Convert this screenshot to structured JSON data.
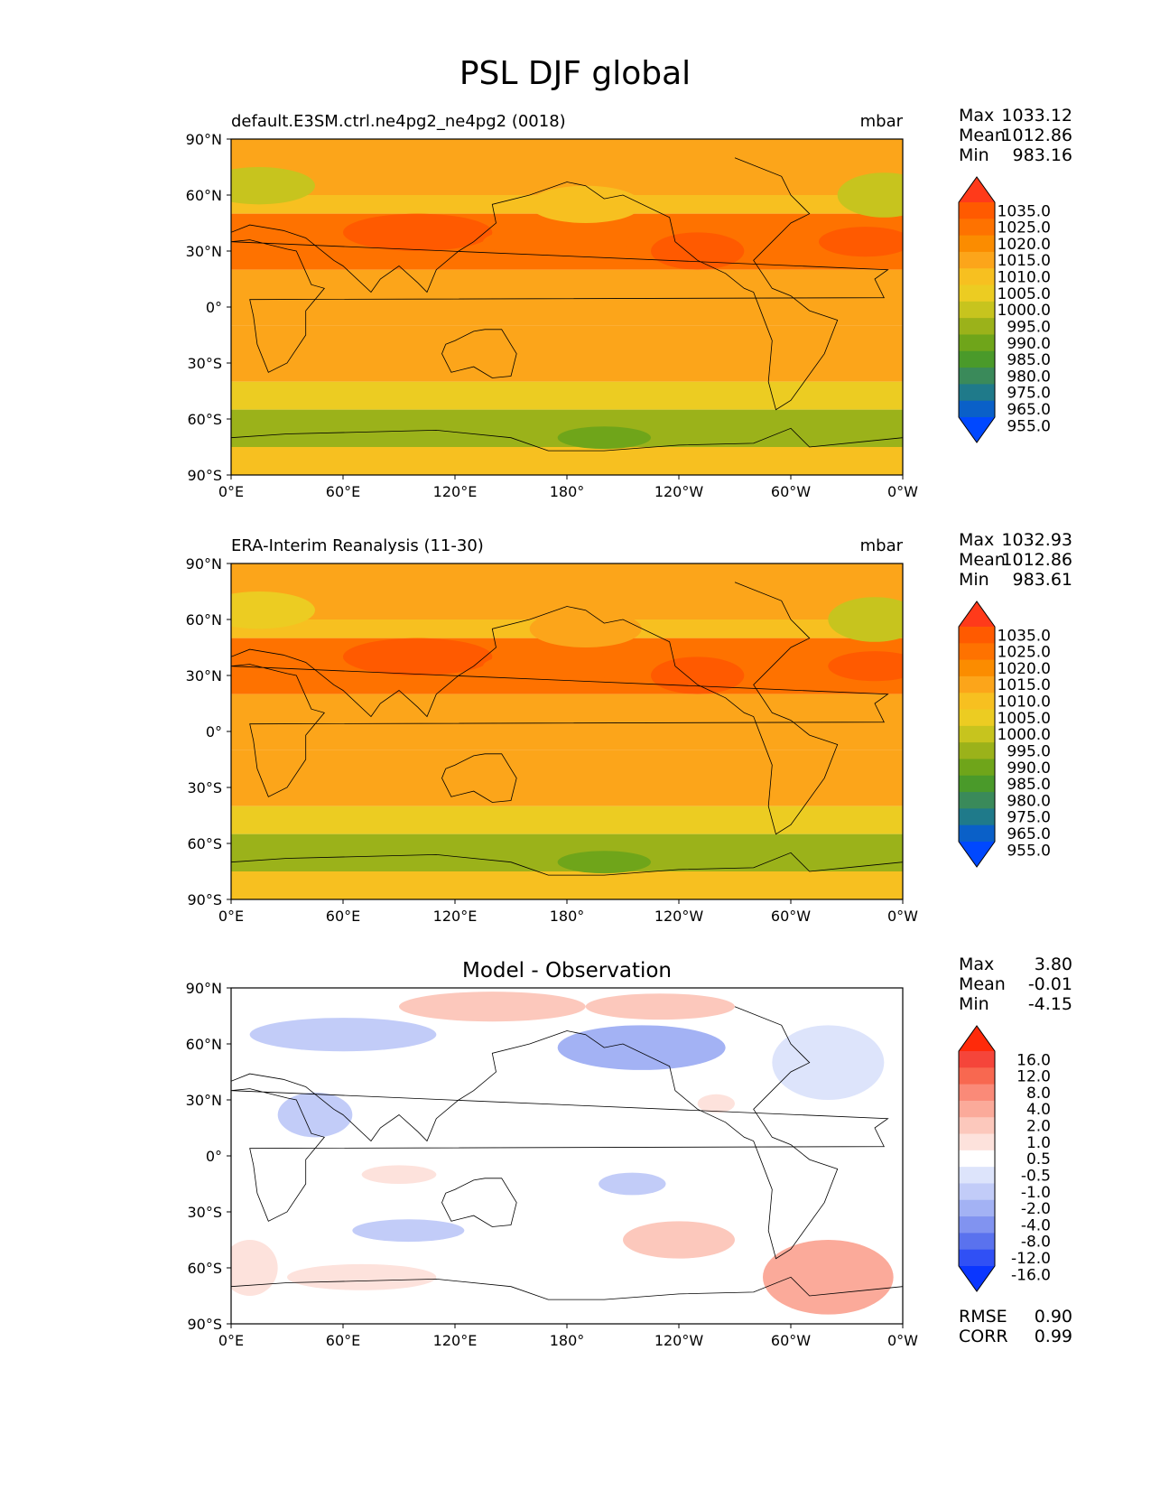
{
  "figure_title": "PSL DJF global",
  "chart_data": [
    {
      "type": "heatmap",
      "title": "default.E3SM.ctrl.ne4pg2_ne4pg2 (0018)",
      "units": "mbar",
      "stats": [
        {
          "label": "Max",
          "value": "1033.12"
        },
        {
          "label": "Mean",
          "value": "1012.86"
        },
        {
          "label": "Min",
          "value": "983.16"
        }
      ],
      "colorbar": {
        "extend": "both",
        "ticks": [
          "1035.0",
          "1025.0",
          "1020.0",
          "1015.0",
          "1010.0",
          "1005.0",
          "1000.0",
          "995.0",
          "990.0",
          "985.0",
          "980.0",
          "975.0",
          "965.0",
          "955.0"
        ],
        "colors": [
          "#ff3a1a",
          "#ff5a00",
          "#fe7200",
          "#fb8c00",
          "#fca51a",
          "#f7c020",
          "#eccc22",
          "#c7c41e",
          "#9bb21a",
          "#6fa51a",
          "#4a9a2a",
          "#3a8a5a",
          "#1f7a8a",
          "#0a60c8",
          "#0048ff"
        ]
      },
      "zones": [
        {
          "lat": [
            60,
            90
          ],
          "value": 1012
        },
        {
          "lat": [
            50,
            60
          ],
          "value": 1008
        },
        {
          "lat": [
            20,
            50
          ],
          "value": 1022
        },
        {
          "lat": [
            -10,
            20
          ],
          "value": 1011
        },
        {
          "lat": [
            -40,
            -10
          ],
          "value": 1014
        },
        {
          "lat": [
            -55,
            -40
          ],
          "value": 1003
        },
        {
          "lat": [
            -75,
            -55
          ],
          "value": 990
        },
        {
          "lat": [
            -90,
            -75
          ],
          "value": 1008
        }
      ],
      "blobs": [
        {
          "lon": 15,
          "lat": 65,
          "rx": 30,
          "ry": 10,
          "value": 997
        },
        {
          "lon": 350,
          "lat": 60,
          "rx": 25,
          "ry": 12,
          "value": 997
        },
        {
          "lon": 190,
          "lat": 55,
          "rx": 30,
          "ry": 10,
          "value": 1007
        },
        {
          "lon": 100,
          "lat": 40,
          "rx": 40,
          "ry": 10,
          "value": 1027
        },
        {
          "lon": 175,
          "lat": 35,
          "rx": 40,
          "ry": 8,
          "value": 1023
        },
        {
          "lon": 340,
          "lat": 35,
          "rx": 25,
          "ry": 8,
          "value": 1025
        },
        {
          "lon": 250,
          "lat": 30,
          "rx": 25,
          "ry": 10,
          "value": 1025
        },
        {
          "lon": 200,
          "lat": -70,
          "rx": 25,
          "ry": 6,
          "value": 985
        }
      ],
      "xticks": [
        "0°E",
        "60°E",
        "120°E",
        "180°",
        "120°W",
        "60°W",
        "0°W"
      ],
      "yticks": [
        "90°N",
        "60°N",
        "30°N",
        "0°",
        "30°S",
        "60°S",
        "90°S"
      ]
    },
    {
      "type": "heatmap",
      "title": "ERA-Interim Reanalysis (11-30)",
      "units": "mbar",
      "stats": [
        {
          "label": "Max",
          "value": "1032.93"
        },
        {
          "label": "Mean",
          "value": "1012.86"
        },
        {
          "label": "Min",
          "value": "983.61"
        }
      ],
      "colorbar": {
        "extend": "both",
        "ticks": [
          "1035.0",
          "1025.0",
          "1020.0",
          "1015.0",
          "1010.0",
          "1005.0",
          "1000.0",
          "995.0",
          "990.0",
          "985.0",
          "980.0",
          "975.0",
          "965.0",
          "955.0"
        ],
        "colors": [
          "#ff3a1a",
          "#ff5a00",
          "#fe7200",
          "#fb8c00",
          "#fca51a",
          "#f7c020",
          "#eccc22",
          "#c7c41e",
          "#9bb21a",
          "#6fa51a",
          "#4a9a2a",
          "#3a8a5a",
          "#1f7a8a",
          "#0a60c8",
          "#0048ff"
        ]
      },
      "zones": [
        {
          "lat": [
            60,
            90
          ],
          "value": 1013
        },
        {
          "lat": [
            50,
            60
          ],
          "value": 1009
        },
        {
          "lat": [
            20,
            50
          ],
          "value": 1022
        },
        {
          "lat": [
            -10,
            20
          ],
          "value": 1011
        },
        {
          "lat": [
            -40,
            -10
          ],
          "value": 1014
        },
        {
          "lat": [
            -55,
            -40
          ],
          "value": 1003
        },
        {
          "lat": [
            -75,
            -55
          ],
          "value": 990
        },
        {
          "lat": [
            -90,
            -75
          ],
          "value": 1007
        }
      ],
      "blobs": [
        {
          "lon": 15,
          "lat": 65,
          "rx": 30,
          "ry": 10,
          "value": 1002
        },
        {
          "lon": 345,
          "lat": 60,
          "rx": 25,
          "ry": 12,
          "value": 997
        },
        {
          "lon": 190,
          "lat": 55,
          "rx": 30,
          "ry": 10,
          "value": 1012
        },
        {
          "lon": 100,
          "lat": 40,
          "rx": 40,
          "ry": 10,
          "value": 1027
        },
        {
          "lon": 175,
          "lat": 35,
          "rx": 40,
          "ry": 8,
          "value": 1023
        },
        {
          "lon": 345,
          "lat": 35,
          "rx": 25,
          "ry": 8,
          "value": 1025
        },
        {
          "lon": 250,
          "lat": 30,
          "rx": 25,
          "ry": 10,
          "value": 1025
        },
        {
          "lon": 200,
          "lat": -70,
          "rx": 25,
          "ry": 6,
          "value": 985
        }
      ],
      "xticks": [
        "0°E",
        "60°E",
        "120°E",
        "180°",
        "120°W",
        "60°W",
        "0°W"
      ],
      "yticks": [
        "90°N",
        "60°N",
        "30°N",
        "0°",
        "30°S",
        "60°S",
        "90°S"
      ]
    },
    {
      "type": "heatmap",
      "title": "Model - Observation",
      "units": "",
      "stats": [
        {
          "label": "Max",
          "value": "3.80"
        },
        {
          "label": "Mean",
          "value": "-0.01"
        },
        {
          "label": "Min",
          "value": "-4.15"
        }
      ],
      "extra_stats": [
        {
          "label": "RMSE",
          "value": "0.90"
        },
        {
          "label": "CORR",
          "value": "0.99"
        }
      ],
      "colorbar": {
        "extend": "both",
        "ticks": [
          "16.0",
          "12.0",
          "8.0",
          "4.0",
          "2.0",
          "1.0",
          "0.5",
          "-0.5",
          "-1.0",
          "-2.0",
          "-4.0",
          "-8.0",
          "-12.0",
          "-16.0"
        ],
        "colors": [
          "#ff2a0a",
          "#f5453a",
          "#f86850",
          "#fa8a78",
          "#fbaa9a",
          "#fcc8bc",
          "#fde2dc",
          "#ffffff",
          "#dde4fb",
          "#c2ccf8",
          "#a3b2f4",
          "#8193f0",
          "#5a72ee",
          "#3050f5",
          "#0a36ff"
        ]
      },
      "zones": [
        {
          "lat": [
            -90,
            90
          ],
          "value": 0
        }
      ],
      "blobs": [
        {
          "lon": 140,
          "lat": 80,
          "rx": 50,
          "ry": 8,
          "value": 1.5
        },
        {
          "lon": 230,
          "lat": 80,
          "rx": 40,
          "ry": 7,
          "value": 1.5
        },
        {
          "lon": 60,
          "lat": 65,
          "rx": 50,
          "ry": 9,
          "value": -1.5
        },
        {
          "lon": 220,
          "lat": 58,
          "rx": 45,
          "ry": 12,
          "value": -2.5
        },
        {
          "lon": 320,
          "lat": 50,
          "rx": 30,
          "ry": 20,
          "value": -0.8
        },
        {
          "lon": 45,
          "lat": 22,
          "rx": 20,
          "ry": 12,
          "value": -1.5
        },
        {
          "lon": 260,
          "lat": 28,
          "rx": 10,
          "ry": 5,
          "value": 0.8
        },
        {
          "lon": 90,
          "lat": -10,
          "rx": 20,
          "ry": 5,
          "value": 0.7
        },
        {
          "lon": 215,
          "lat": -15,
          "rx": 18,
          "ry": 6,
          "value": -1.5
        },
        {
          "lon": 240,
          "lat": -45,
          "rx": 30,
          "ry": 10,
          "value": 1.5
        },
        {
          "lon": 95,
          "lat": -40,
          "rx": 30,
          "ry": 6,
          "value": -1.2
        },
        {
          "lon": 70,
          "lat": -65,
          "rx": 40,
          "ry": 7,
          "value": 0.8
        },
        {
          "lon": 320,
          "lat": -65,
          "rx": 35,
          "ry": 20,
          "value": 2.5
        },
        {
          "lon": 10,
          "lat": -60,
          "rx": 15,
          "ry": 15,
          "value": 0.8
        }
      ],
      "xticks": [
        "0°E",
        "60°E",
        "120°E",
        "180°",
        "120°W",
        "60°W",
        "0°W"
      ],
      "yticks": [
        "90°N",
        "60°N",
        "30°N",
        "0°",
        "30°S",
        "60°S",
        "90°S"
      ]
    }
  ]
}
